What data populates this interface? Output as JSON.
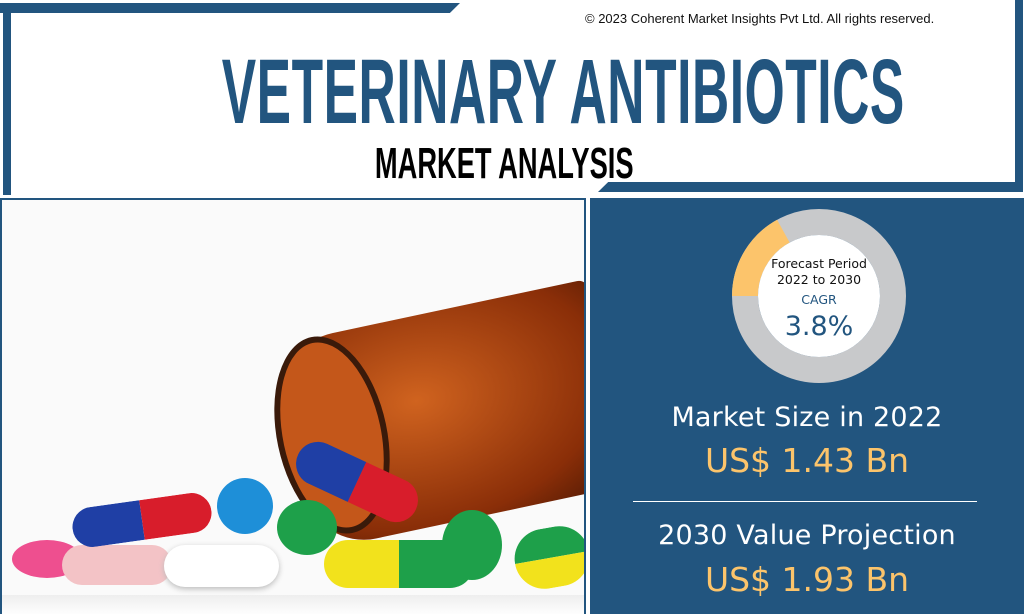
{
  "header": {
    "copyright": "© 2023 Coherent Market Insights Pvt Ltd. All rights reserved.",
    "title": "VETERINARY ANTIBIOTICS",
    "subtitle": "MARKET ANALYSIS"
  },
  "cagr_card": {
    "forecast_label": "Forecast Period",
    "period": "2022 to 2030",
    "cagr_label": "CAGR",
    "cagr_value": "3.8%",
    "ring_highlight_fraction": 0.17
  },
  "stats": {
    "market_size_label": "Market Size in 2022",
    "market_size_value": "US$ 1.43 Bn",
    "projection_label": "2030 Value Projection",
    "projection_value": "US$ 1.93 Bn"
  },
  "colors": {
    "brand_blue": "#22557f",
    "accent_orange": "#fcc46b",
    "ring_gray": "#c8c9cb"
  }
}
